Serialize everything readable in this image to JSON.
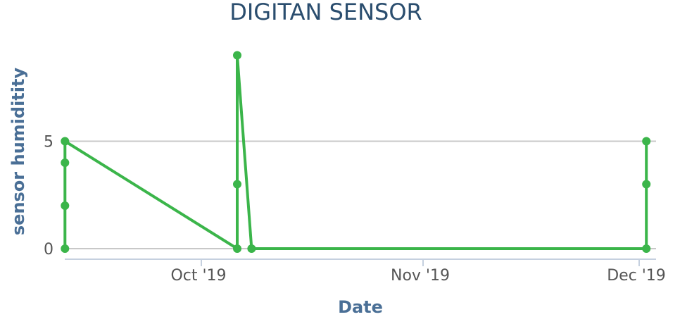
{
  "chart_data": {
    "type": "line",
    "title": "DIGITAN SENSOR",
    "xlabel": "Date",
    "ylabel": "sensor humiditity",
    "x_ticks": [
      "Oct '19",
      "Nov '19",
      "Dec '19"
    ],
    "x_tick_dates": [
      "2019-10-01",
      "2019-11-01",
      "2019-12-01"
    ],
    "y_ticks": [
      0,
      5
    ],
    "xlim": [
      "2019-09-12",
      "2019-12-03"
    ],
    "ylim": [
      0,
      9
    ],
    "grid": true,
    "legend": "none",
    "colors": {
      "series": "#3bb54a",
      "grid": "#c8c8c8",
      "x_axis": "#c5d0df"
    },
    "series": [
      {
        "points": [
          {
            "x": "2019-09-12",
            "y": 0
          },
          {
            "x": "2019-09-12",
            "y": 2
          },
          {
            "x": "2019-09-12",
            "y": 4
          },
          {
            "x": "2019-09-12",
            "y": 5
          },
          {
            "x": "2019-10-06",
            "y": 0
          },
          {
            "x": "2019-10-06",
            "y": 3
          },
          {
            "x": "2019-10-06",
            "y": 9
          },
          {
            "x": "2019-10-08",
            "y": 0
          },
          {
            "x": "2019-12-02",
            "y": 0
          },
          {
            "x": "2019-12-02",
            "y": 3
          },
          {
            "x": "2019-12-02",
            "y": 5
          }
        ]
      }
    ]
  }
}
